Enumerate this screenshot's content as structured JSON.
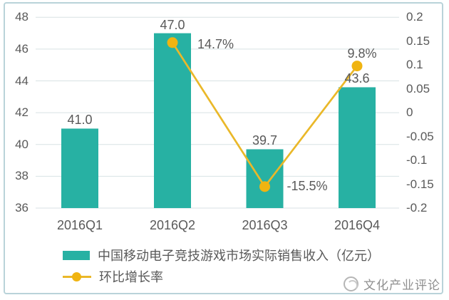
{
  "chart_data": {
    "type": "bar",
    "subtype": "bar-line-combo",
    "categories": [
      "2016Q1",
      "2016Q2",
      "2016Q3",
      "2016Q4"
    ],
    "series": [
      {
        "name": "中国移动电子竞技游戏市场实际销售收入（亿元）",
        "type": "bar",
        "axis": "left",
        "values": [
          41.0,
          47.0,
          39.7,
          43.6
        ],
        "labels": [
          "41.0",
          "47.0",
          "39.7",
          "43.6"
        ],
        "color": "#27b1a3"
      },
      {
        "name": "环比增长率",
        "type": "line",
        "axis": "right",
        "values": [
          null,
          0.147,
          -0.155,
          0.098
        ],
        "labels": [
          null,
          "14.7%",
          "-15.5%",
          "9.8%"
        ],
        "color": "#eab829",
        "marker_color": "#f0b411"
      }
    ],
    "left_axis": {
      "min": 36,
      "max": 48,
      "ticks": [
        "36",
        "38",
        "40",
        "42",
        "44",
        "46",
        "48"
      ]
    },
    "right_axis": {
      "min": -0.2,
      "max": 0.2,
      "ticks": [
        "0.2",
        "0.15",
        "0.1",
        "0.05",
        "0",
        "-0.05",
        "-0.1",
        "-0.15",
        "-0.2"
      ]
    },
    "grid": true,
    "legend_position": "bottom-left",
    "title": "",
    "xlabel": "",
    "ylabel": ""
  },
  "colors": {
    "grid_line": "#d8e2e4",
    "axis_text": "#595959",
    "frame_border": "#b9d3d9",
    "watermark": "#8f8f8f"
  },
  "watermark": {
    "text": "文化产业评论"
  }
}
